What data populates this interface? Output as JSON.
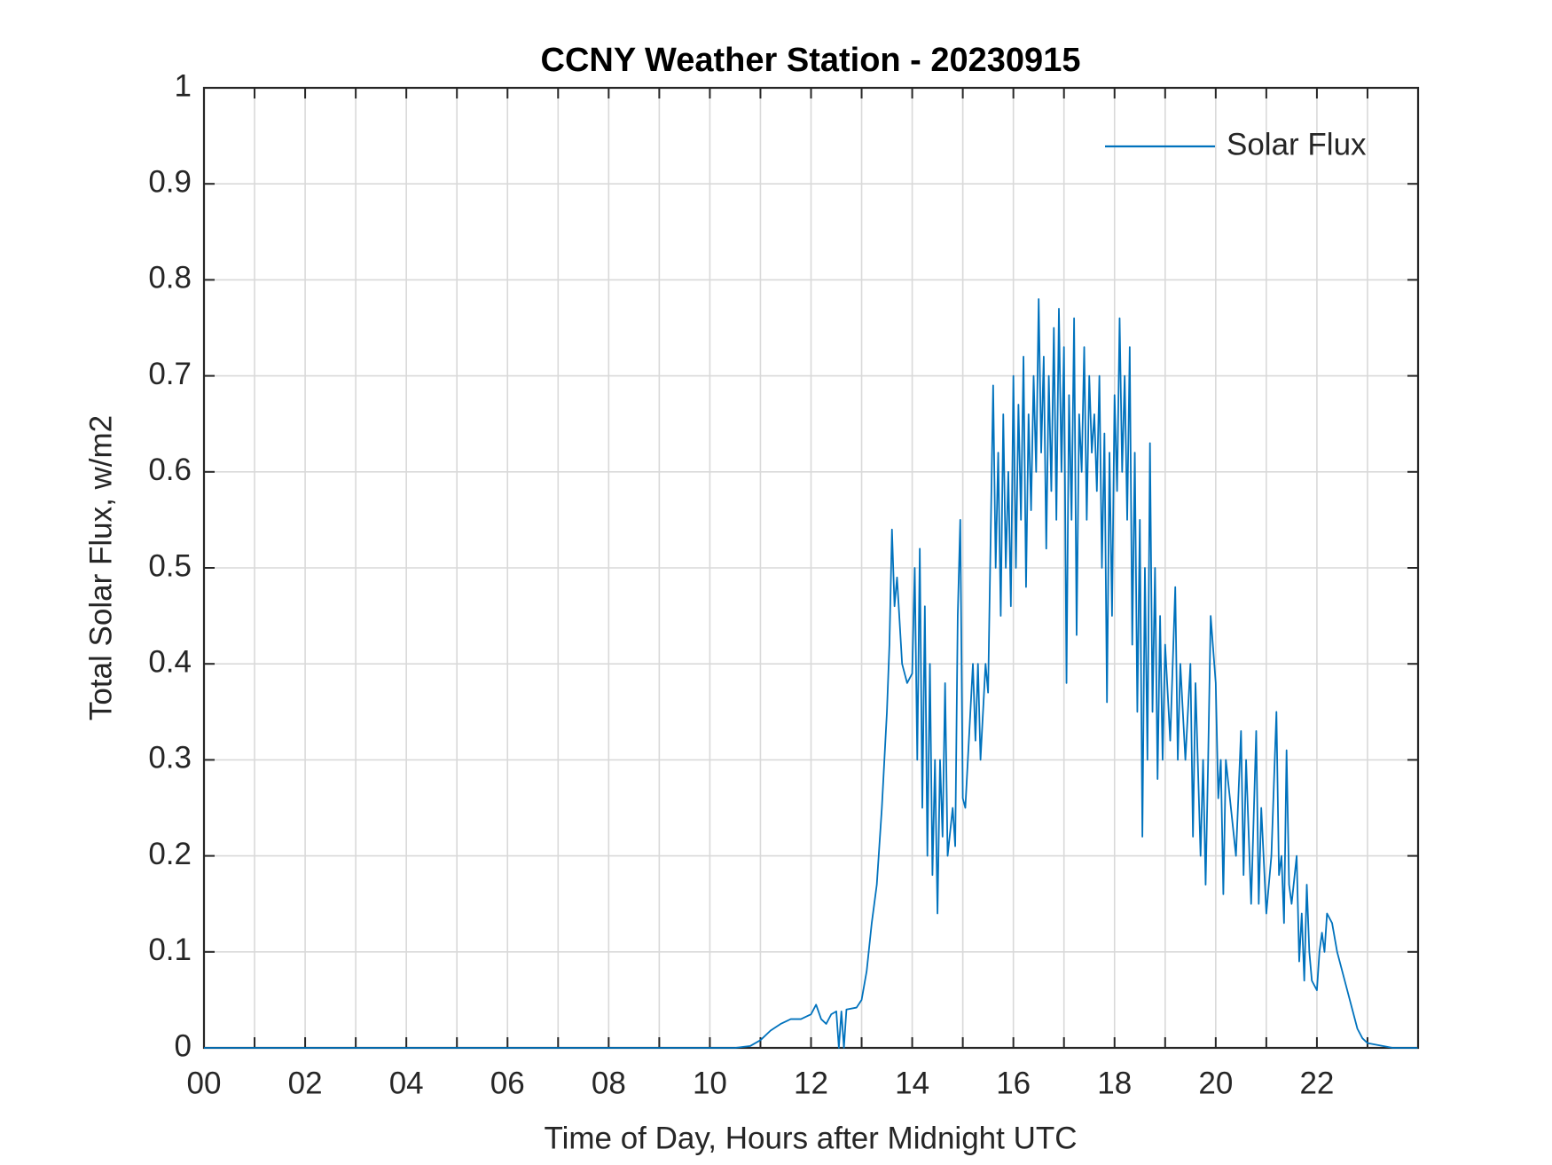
{
  "chart_data": {
    "type": "line",
    "title": "CCNY Weather Station - 20230915",
    "x_label": "Time of Day, Hours after Midnight UTC",
    "y_label": "Total Solar Flux, w/m2",
    "xlim": [
      0,
      24
    ],
    "xticks": [
      {
        "value": 0,
        "label": "00"
      },
      {
        "value": 2,
        "label": "02"
      },
      {
        "value": 4,
        "label": "04"
      },
      {
        "value": 6,
        "label": "06"
      },
      {
        "value": 8,
        "label": "08"
      },
      {
        "value": 10,
        "label": "10"
      },
      {
        "value": 12,
        "label": "12"
      },
      {
        "value": 14,
        "label": "14"
      },
      {
        "value": 16,
        "label": "16"
      },
      {
        "value": 18,
        "label": "18"
      },
      {
        "value": 20,
        "label": "20"
      },
      {
        "value": 22,
        "label": "22"
      }
    ],
    "xminorticks": [
      1,
      3,
      5,
      7,
      9,
      11,
      13,
      15,
      17,
      19,
      21,
      23
    ],
    "ylim": [
      0,
      1
    ],
    "yticks": [
      0,
      0.1,
      0.2,
      0.3,
      0.4,
      0.5,
      0.6,
      0.7,
      0.8,
      0.9,
      1
    ],
    "grid": true,
    "legend": "upper right",
    "x": [
      0,
      10.5,
      10.8,
      11.0,
      11.2,
      11.4,
      11.6,
      11.8,
      12.0,
      12.1,
      12.2,
      12.3,
      12.4,
      12.5,
      12.55,
      12.6,
      12.65,
      12.7,
      12.9,
      13.0,
      13.1,
      13.2,
      13.3,
      13.4,
      13.5,
      13.55,
      13.6,
      13.65,
      13.7,
      13.8,
      13.9,
      14.0,
      14.05,
      14.1,
      14.15,
      14.2,
      14.25,
      14.3,
      14.35,
      14.4,
      14.45,
      14.5,
      14.55,
      14.6,
      14.65,
      14.7,
      14.8,
      14.85,
      14.9,
      14.95,
      15.0,
      15.05,
      15.1,
      15.2,
      15.25,
      15.3,
      15.35,
      15.45,
      15.5,
      15.6,
      15.65,
      15.7,
      15.75,
      15.8,
      15.85,
      15.9,
      15.95,
      16.0,
      16.05,
      16.1,
      16.15,
      16.2,
      16.25,
      16.3,
      16.35,
      16.4,
      16.45,
      16.5,
      16.55,
      16.6,
      16.65,
      16.7,
      16.75,
      16.8,
      16.85,
      16.9,
      16.95,
      17.0,
      17.05,
      17.1,
      17.15,
      17.2,
      17.25,
      17.3,
      17.35,
      17.4,
      17.45,
      17.5,
      17.55,
      17.6,
      17.65,
      17.7,
      17.75,
      17.8,
      17.85,
      17.9,
      17.95,
      18.0,
      18.05,
      18.1,
      18.15,
      18.2,
      18.25,
      18.3,
      18.35,
      18.4,
      18.45,
      18.5,
      18.55,
      18.6,
      18.65,
      18.7,
      18.75,
      18.8,
      18.85,
      18.9,
      18.95,
      19.0,
      19.1,
      19.2,
      19.25,
      19.3,
      19.4,
      19.5,
      19.55,
      19.6,
      19.7,
      19.75,
      19.8,
      19.85,
      19.9,
      20.0,
      20.05,
      20.1,
      20.15,
      20.2,
      20.3,
      20.4,
      20.5,
      20.55,
      20.6,
      20.7,
      20.8,
      20.85,
      20.9,
      21.0,
      21.1,
      21.2,
      21.25,
      21.3,
      21.35,
      21.4,
      21.45,
      21.5,
      21.6,
      21.65,
      21.7,
      21.75,
      21.8,
      21.85,
      21.9,
      22.0,
      22.05,
      22.1,
      22.15,
      22.2,
      22.3,
      22.4,
      22.5,
      22.6,
      22.7,
      22.8,
      22.9,
      23.0,
      23.5,
      23.99
    ],
    "series": [
      {
        "name": "Solar Flux",
        "color": "#0072bd",
        "values": [
          0,
          0,
          0.002,
          0.008,
          0.018,
          0.025,
          0.03,
          0.03,
          0.035,
          0.045,
          0.03,
          0.025,
          0.035,
          0.038,
          0,
          0.038,
          0,
          0.04,
          0.042,
          0.05,
          0.08,
          0.13,
          0.17,
          0.25,
          0.35,
          0.42,
          0.54,
          0.46,
          0.49,
          0.4,
          0.38,
          0.39,
          0.5,
          0.3,
          0.52,
          0.25,
          0.46,
          0.2,
          0.4,
          0.18,
          0.3,
          0.14,
          0.3,
          0.22,
          0.38,
          0.2,
          0.25,
          0.21,
          0.45,
          0.55,
          0.26,
          0.25,
          0.3,
          0.4,
          0.32,
          0.4,
          0.3,
          0.4,
          0.37,
          0.69,
          0.5,
          0.62,
          0.45,
          0.66,
          0.5,
          0.6,
          0.46,
          0.7,
          0.5,
          0.67,
          0.55,
          0.72,
          0.48,
          0.66,
          0.56,
          0.7,
          0.6,
          0.78,
          0.62,
          0.72,
          0.52,
          0.7,
          0.58,
          0.75,
          0.55,
          0.77,
          0.6,
          0.73,
          0.38,
          0.68,
          0.55,
          0.76,
          0.43,
          0.66,
          0.6,
          0.73,
          0.55,
          0.7,
          0.62,
          0.66,
          0.58,
          0.7,
          0.5,
          0.64,
          0.36,
          0.62,
          0.45,
          0.68,
          0.58,
          0.76,
          0.6,
          0.7,
          0.55,
          0.73,
          0.42,
          0.62,
          0.35,
          0.55,
          0.22,
          0.5,
          0.3,
          0.63,
          0.35,
          0.5,
          0.28,
          0.45,
          0.3,
          0.42,
          0.32,
          0.48,
          0.3,
          0.4,
          0.3,
          0.4,
          0.22,
          0.38,
          0.2,
          0.3,
          0.17,
          0.3,
          0.45,
          0.38,
          0.26,
          0.3,
          0.16,
          0.3,
          0.25,
          0.2,
          0.33,
          0.18,
          0.3,
          0.15,
          0.33,
          0.15,
          0.25,
          0.14,
          0.2,
          0.35,
          0.18,
          0.2,
          0.13,
          0.31,
          0.17,
          0.15,
          0.2,
          0.09,
          0.14,
          0.07,
          0.17,
          0.1,
          0.07,
          0.06,
          0.1,
          0.12,
          0.1,
          0.14,
          0.13,
          0.1,
          0.08,
          0.06,
          0.04,
          0.02,
          0.01,
          0.005,
          0,
          0
        ]
      }
    ]
  }
}
